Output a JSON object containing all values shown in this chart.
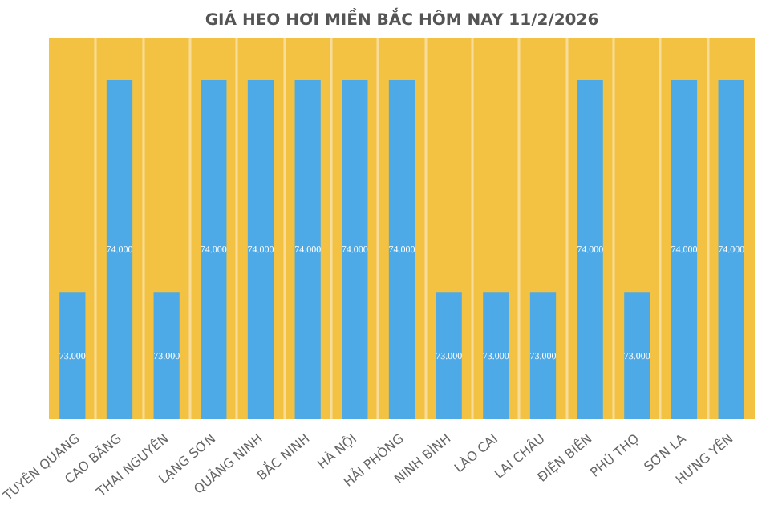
{
  "chart_data": {
    "type": "bar",
    "title": "GIÁ HEO HƠI MIỀN BẮC HÔM NAY 11/2/2026",
    "categories": [
      "TUYÊN QUANG",
      "CAO BẰNG",
      "THÁI NGUYÊN",
      "LẠNG SƠN",
      "QUẢNG NINH",
      "BẮC NINH",
      "HÀ NỘI",
      "HẢI PHÒNG",
      "NINH BÌNH",
      "LÀO CAI",
      "LAI CHÂU",
      "ĐIỆN BIÊN",
      "PHÚ THỌ",
      "SƠN LA",
      "HƯNG YÊN"
    ],
    "values": [
      73000,
      74000,
      73000,
      74000,
      74000,
      74000,
      74000,
      74000,
      73000,
      73000,
      73000,
      74000,
      73000,
      74000,
      74000
    ],
    "value_labels": [
      "73.000",
      "74.000",
      "73.000",
      "74.000",
      "74.000",
      "74.000",
      "74.000",
      "74.000",
      "73.000",
      "73.000",
      "73.000",
      "74.000",
      "73.000",
      "74.000",
      "74.000"
    ],
    "color": "#4eaae6",
    "ylim": [
      72400,
      74200
    ],
    "grid": "x",
    "tick_labels": "x"
  }
}
